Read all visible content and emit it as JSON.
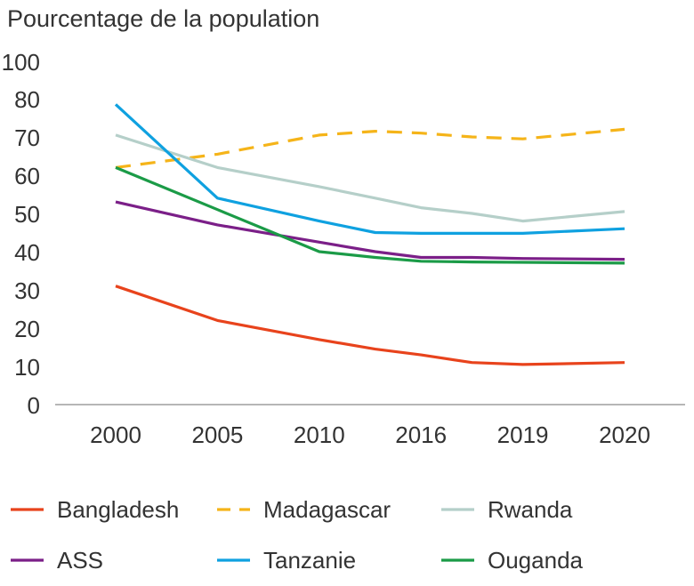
{
  "chart_data": {
    "type": "line",
    "title": "",
    "ylabel": "Pourcentage de la population",
    "xlabel": "",
    "categories": [
      "2000",
      "2005",
      "2010",
      "2016",
      "2019",
      "2020"
    ],
    "x_positions": [
      0,
      1,
      2,
      3,
      4,
      5
    ],
    "yticks": [
      "100",
      "80",
      "70",
      "60",
      "50",
      "40",
      "30",
      "20",
      "10",
      "0"
    ],
    "ylim": [
      0,
      100
    ],
    "grid": false,
    "legend_position": "bottom",
    "series": [
      {
        "name": "Bangladesh",
        "color": "#e8431c",
        "dashed": false,
        "x": [
          0,
          1,
          2,
          2.55,
          3,
          3.5,
          4,
          5
        ],
        "y": [
          31,
          22,
          17,
          14.5,
          13,
          11,
          10.5,
          11
        ]
      },
      {
        "name": "Madagascar",
        "color": "#f5b419",
        "dashed": true,
        "x": [
          0,
          1,
          2,
          2.55,
          3,
          3.5,
          4,
          5
        ],
        "y": [
          62,
          65.5,
          70.5,
          71.5,
          71,
          70,
          69.5,
          72
        ]
      },
      {
        "name": "Rwanda",
        "color": "#b5cfc9",
        "dashed": false,
        "x": [
          0,
          1,
          2,
          2.55,
          3,
          3.5,
          4,
          5
        ],
        "y": [
          70.5,
          62,
          57,
          54,
          51.5,
          50,
          48,
          50.5
        ]
      },
      {
        "name": "ASS",
        "color": "#7b1f88",
        "dashed": false,
        "x": [
          0,
          1,
          2,
          2.55,
          3,
          3.5,
          4,
          5
        ],
        "y": [
          53,
          47,
          42.5,
          40,
          38.5,
          38.5,
          38.2,
          38
        ]
      },
      {
        "name": "Tanzanie",
        "color": "#0fa1e0",
        "dashed": false,
        "x": [
          0,
          1,
          2,
          2.55,
          3,
          3.5,
          4,
          5
        ],
        "y": [
          78.5,
          54,
          48,
          45,
          44.8,
          44.8,
          44.8,
          46
        ]
      },
      {
        "name": "Ouganda",
        "color": "#1b9b47",
        "dashed": false,
        "x": [
          0,
          1,
          2,
          2.55,
          3,
          3.5,
          4,
          5
        ],
        "y": [
          62,
          51,
          40,
          38.5,
          37.5,
          37.3,
          37.2,
          37
        ]
      }
    ]
  }
}
